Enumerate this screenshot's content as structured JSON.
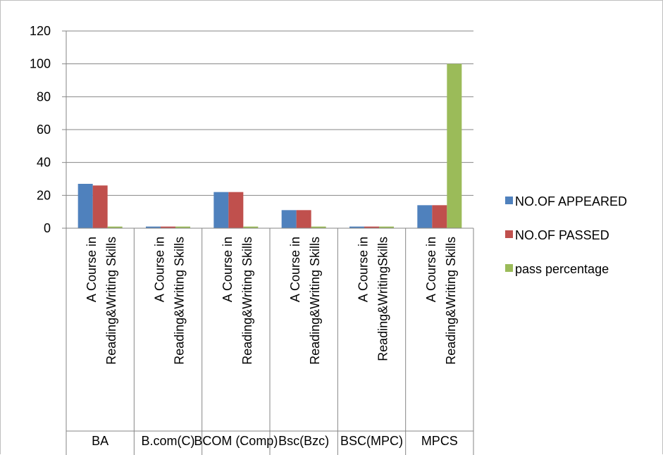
{
  "chart_data": {
    "type": "bar",
    "title": "",
    "xlabel": "",
    "ylabel": "",
    "ylim": [
      0,
      120
    ],
    "yticks": [
      "0",
      "20",
      "40",
      "60",
      "80",
      "100",
      "120"
    ],
    "grid": true,
    "legend_position": "right",
    "groups": [
      "BA",
      "B.com(C)",
      "BCOM (Comp)",
      "Bsc(Bzc)",
      "BSC(MPC)",
      "MPCS"
    ],
    "categories": [
      "A Course in Reading&Writing Skills",
      "A Course in Reading&Writing Skills",
      "A Course in Reading&Writing Skills",
      "A Course in Reading&Writing Skills",
      "A Course in Reading&WritingSkills",
      "A Course in Reading&Writing Skills"
    ],
    "category_lines": [
      [
        "A Course in",
        "Reading&Writing Skills"
      ],
      [
        "A Course in",
        "Reading&Writing Skills"
      ],
      [
        "A Course in",
        "Reading&Writing Skills"
      ],
      [
        "A Course in",
        "Reading&Writing Skills"
      ],
      [
        "A Course in",
        "Reading&WritingSkills"
      ],
      [
        "A Course in",
        "Reading&Writing Skills"
      ]
    ],
    "series": [
      {
        "name": "NO.OF APPEARED",
        "color": "#4f81bd",
        "values": [
          27,
          1,
          22,
          11,
          1,
          14
        ]
      },
      {
        "name": "NO.OF PASSED",
        "color": "#c0504d",
        "values": [
          26,
          1,
          22,
          11,
          1,
          14
        ]
      },
      {
        "name": "pass percentage",
        "color": "#9bbb59",
        "values": [
          1,
          1,
          1,
          1,
          1,
          100
        ]
      }
    ]
  }
}
